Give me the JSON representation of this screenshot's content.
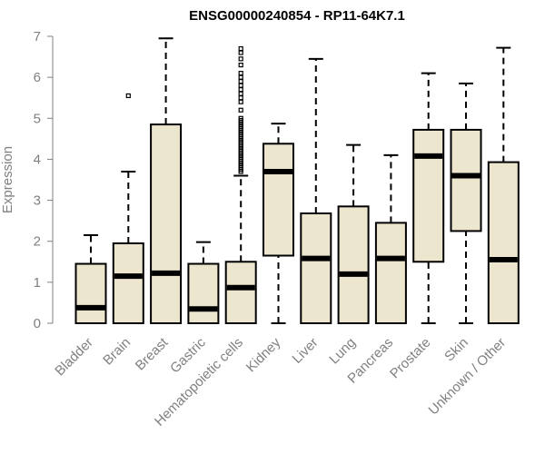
{
  "chart_data": {
    "type": "boxplot",
    "title": "ENSG00000240854 - RP11-64K7.1",
    "xlabel": "",
    "ylabel": "Expression",
    "ylim": [
      0,
      7
    ],
    "yticks": [
      "0",
      "1",
      "2",
      "3",
      "4",
      "5",
      "6",
      "7"
    ],
    "box_color": "#ede6cf",
    "axis_color": "#808080",
    "categories": [
      "Bladder",
      "Brain",
      "Breast",
      "Gastric",
      "Hematopoietic cells",
      "Kidney",
      "Liver",
      "Lung",
      "Pancreas",
      "Prostate",
      "Skin",
      "Unknown / Other"
    ],
    "boxes": [
      {
        "category": "Bladder",
        "min": 0,
        "q1": 0,
        "median": 0.38,
        "q3": 1.45,
        "max": 2.15,
        "outliers": []
      },
      {
        "category": "Brain",
        "min": 0,
        "q1": 0,
        "median": 1.15,
        "q3": 1.95,
        "max": 3.7,
        "outliers": [
          5.55
        ]
      },
      {
        "category": "Breast",
        "min": 0,
        "q1": 0,
        "median": 1.22,
        "q3": 4.85,
        "max": 6.95,
        "outliers": []
      },
      {
        "category": "Gastric",
        "min": 0,
        "q1": 0,
        "median": 0.35,
        "q3": 1.45,
        "max": 1.98,
        "outliers": []
      },
      {
        "category": "Hematopoietic cells",
        "min": 0,
        "q1": 0,
        "median": 0.87,
        "q3": 1.5,
        "max": 3.6,
        "outliers": [
          3.7,
          3.75,
          3.8,
          3.85,
          3.9,
          3.95,
          4.0,
          4.05,
          4.1,
          4.15,
          4.2,
          4.25,
          4.3,
          4.35,
          4.4,
          4.45,
          4.5,
          4.55,
          4.6,
          4.65,
          4.7,
          4.75,
          4.8,
          4.85,
          4.9,
          4.95,
          5.0,
          5.2,
          5.4,
          5.5,
          5.6,
          5.7,
          5.8,
          5.9,
          6.0,
          6.1,
          6.3,
          6.45,
          6.6,
          6.7
        ]
      },
      {
        "category": "Kidney",
        "min": 0,
        "q1": 1.65,
        "median": 3.7,
        "q3": 4.38,
        "max": 4.87,
        "outliers": []
      },
      {
        "category": "Liver",
        "min": 0,
        "q1": 0,
        "median": 1.58,
        "q3": 2.68,
        "max": 6.45,
        "outliers": []
      },
      {
        "category": "Lung",
        "min": 0,
        "q1": 0,
        "median": 1.2,
        "q3": 2.85,
        "max": 4.35,
        "outliers": []
      },
      {
        "category": "Pancreas",
        "min": 0,
        "q1": 0,
        "median": 1.58,
        "q3": 2.45,
        "max": 4.1,
        "outliers": []
      },
      {
        "category": "Prostate",
        "min": 0,
        "q1": 1.5,
        "median": 4.08,
        "q3": 4.72,
        "max": 6.1,
        "outliers": []
      },
      {
        "category": "Skin",
        "min": 0,
        "q1": 2.25,
        "median": 3.6,
        "q3": 4.72,
        "max": 5.85,
        "outliers": []
      },
      {
        "category": "Unknown / Other",
        "min": 0,
        "q1": 0,
        "median": 1.55,
        "q3": 3.93,
        "max": 6.72,
        "outliers": []
      }
    ]
  }
}
